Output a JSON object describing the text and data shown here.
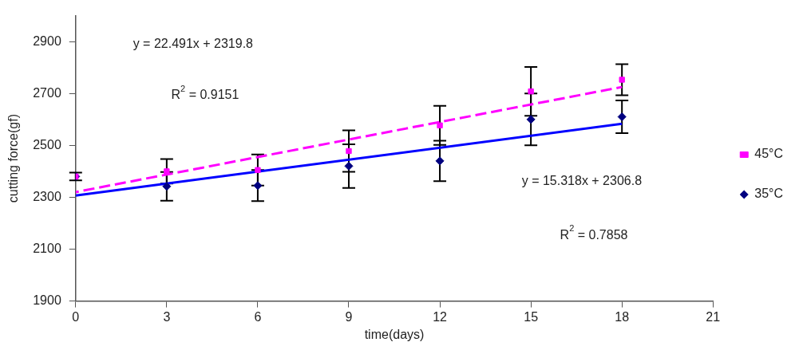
{
  "chart_data": {
    "type": "scatter",
    "xlabel": "time(days)",
    "ylabel": "cutting force(gf)",
    "xlim": [
      0,
      21
    ],
    "xticks": [
      0,
      3,
      6,
      9,
      12,
      15,
      18,
      21
    ],
    "ylim": [
      1900,
      3000
    ],
    "yticks": [
      1900,
      2100,
      2300,
      2500,
      2700,
      2900
    ],
    "grid": false,
    "legend": "right",
    "series": [
      {
        "name": "35°C",
        "type": "scatter",
        "marker": "diamond",
        "color": "#000080",
        "x": [
          0,
          3,
          6,
          9,
          12,
          15,
          18
        ],
        "values": [
          2380,
          2342,
          2345,
          2420,
          2440,
          2600,
          2610
        ],
        "errors": [
          15,
          55,
          60,
          84,
          78,
          100,
          63
        ]
      },
      {
        "name": "45°C",
        "type": "scatter",
        "marker": "square",
        "color": "#ff00ff",
        "x": [
          0,
          3,
          6,
          9,
          12,
          15,
          18
        ],
        "values": [
          2380,
          2400,
          2405,
          2478,
          2577,
          2708,
          2753
        ],
        "errors": [
          null,
          47,
          60,
          80,
          75,
          94,
          60
        ]
      },
      {
        "type": "line",
        "marker": "none",
        "line_style": "solid",
        "color": "#0000ff",
        "x": [
          0,
          18
        ],
        "values": [
          2307,
          2583
        ]
      },
      {
        "type": "line",
        "marker": "none",
        "line_style": "dashed",
        "color": "#ff00ff",
        "x": [
          0,
          18
        ],
        "values": [
          2320,
          2725
        ]
      }
    ],
    "annotations": [
      "y = 22.491x + 2319.8",
      "R$^{2}$ = 0.9151",
      "y = 15.318x + 2306.8",
      "R$^{2}$ = 0.7858"
    ]
  }
}
